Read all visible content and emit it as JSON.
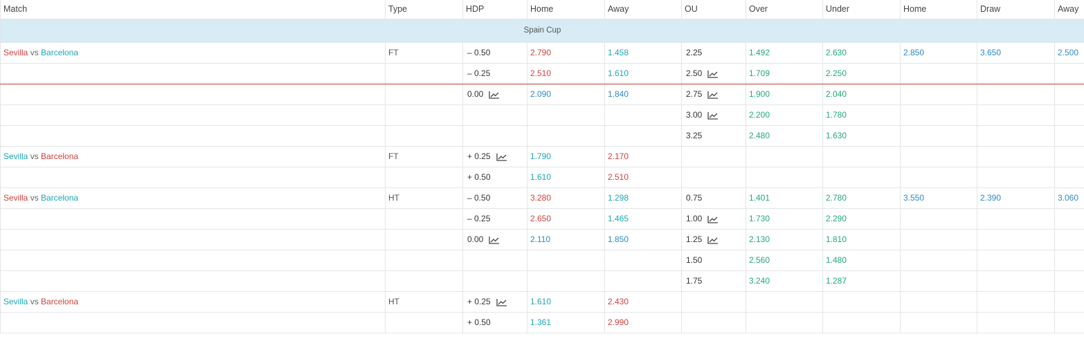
{
  "columns": [
    "Match",
    "Type",
    "HDP",
    "Home",
    "Away",
    "OU",
    "Over",
    "Under",
    "Home",
    "Draw",
    "Away"
  ],
  "league": "Spain Cup",
  "colors": {
    "red": "#d0413d",
    "blue": "#2e8bc0",
    "cyan": "#1ba7b5",
    "green": "#23a878",
    "league_bg": "#d8ecf5",
    "separator": "#b64037"
  },
  "rows": [
    {
      "home": "Sevilla",
      "vs": "vs",
      "away": "Barcelona",
      "homeColor": "red",
      "awayColor": "cyan",
      "type": "FT",
      "hdp": "– 0.50",
      "hdpTrend": false,
      "hdpHome": "2.790",
      "hdpHomeColor": "red",
      "hdpAway": "1.458",
      "hdpAwayColor": "cyan",
      "ou": "2.25",
      "ouTrend": false,
      "over": "1.492",
      "under": "2.630",
      "x1": "2.850",
      "xd": "3.650",
      "x2": "2.500"
    },
    {
      "hdp": "– 0.25",
      "hdpTrend": false,
      "hdpHome": "2.510",
      "hdpHomeColor": "red",
      "hdpAway": "1.610",
      "hdpAwayColor": "cyan",
      "ou": "2.50",
      "ouTrend": true,
      "over": "1.709",
      "under": "2.250"
    },
    {
      "hdp": "0.00",
      "hdpTrend": true,
      "hdpHome": "2.090",
      "hdpHomeColor": "blue",
      "hdpAway": "1.840",
      "hdpAwayColor": "blue",
      "ou": "2.75",
      "ouTrend": true,
      "over": "1.900",
      "under": "2.040"
    },
    {
      "ou": "3.00",
      "ouTrend": true,
      "over": "2.200",
      "under": "1.780"
    },
    {
      "ou": "3.25",
      "ouTrend": false,
      "over": "2.480",
      "under": "1.630"
    },
    {
      "home": "Sevilla",
      "vs": "vs",
      "away": "Barcelona",
      "homeColor": "cyan",
      "awayColor": "red",
      "type": "FT",
      "hdp": "+ 0.25",
      "hdpTrend": true,
      "hdpHome": "1.790",
      "hdpHomeColor": "cyan",
      "hdpAway": "2.170",
      "hdpAwayColor": "red"
    },
    {
      "hdp": "+ 0.50",
      "hdpTrend": false,
      "hdpHome": "1.610",
      "hdpHomeColor": "cyan",
      "hdpAway": "2.510",
      "hdpAwayColor": "red"
    },
    {
      "home": "Sevilla",
      "vs": "vs",
      "away": "Barcelona",
      "homeColor": "red",
      "awayColor": "cyan",
      "type": "HT",
      "hdp": "– 0.50",
      "hdpTrend": false,
      "hdpHome": "3.280",
      "hdpHomeColor": "red",
      "hdpAway": "1.298",
      "hdpAwayColor": "cyan",
      "ou": "0.75",
      "ouTrend": false,
      "over": "1.401",
      "under": "2.780",
      "x1": "3.550",
      "xd": "2.390",
      "x2": "3.060"
    },
    {
      "hdp": "– 0.25",
      "hdpTrend": false,
      "hdpHome": "2.650",
      "hdpHomeColor": "red",
      "hdpAway": "1.465",
      "hdpAwayColor": "cyan",
      "ou": "1.00",
      "ouTrend": true,
      "over": "1.730",
      "under": "2.290"
    },
    {
      "hdp": "0.00",
      "hdpTrend": true,
      "hdpHome": "2.110",
      "hdpHomeColor": "blue",
      "hdpAway": "1.850",
      "hdpAwayColor": "blue",
      "ou": "1.25",
      "ouTrend": true,
      "over": "2.130",
      "under": "1.810"
    },
    {
      "ou": "1.50",
      "ouTrend": false,
      "over": "2.560",
      "under": "1.480"
    },
    {
      "ou": "1.75",
      "ouTrend": false,
      "over": "3.240",
      "under": "1.287"
    },
    {
      "home": "Sevilla",
      "vs": "vs",
      "away": "Barcelona",
      "homeColor": "cyan",
      "awayColor": "red",
      "type": "HT",
      "hdp": "+ 0.25",
      "hdpTrend": true,
      "hdpHome": "1.610",
      "hdpHomeColor": "cyan",
      "hdpAway": "2.430",
      "hdpAwayColor": "red"
    },
    {
      "hdp": "+ 0.50",
      "hdpTrend": false,
      "hdpHome": "1.361",
      "hdpHomeColor": "cyan",
      "hdpAway": "2.990",
      "hdpAwayColor": "red"
    }
  ]
}
